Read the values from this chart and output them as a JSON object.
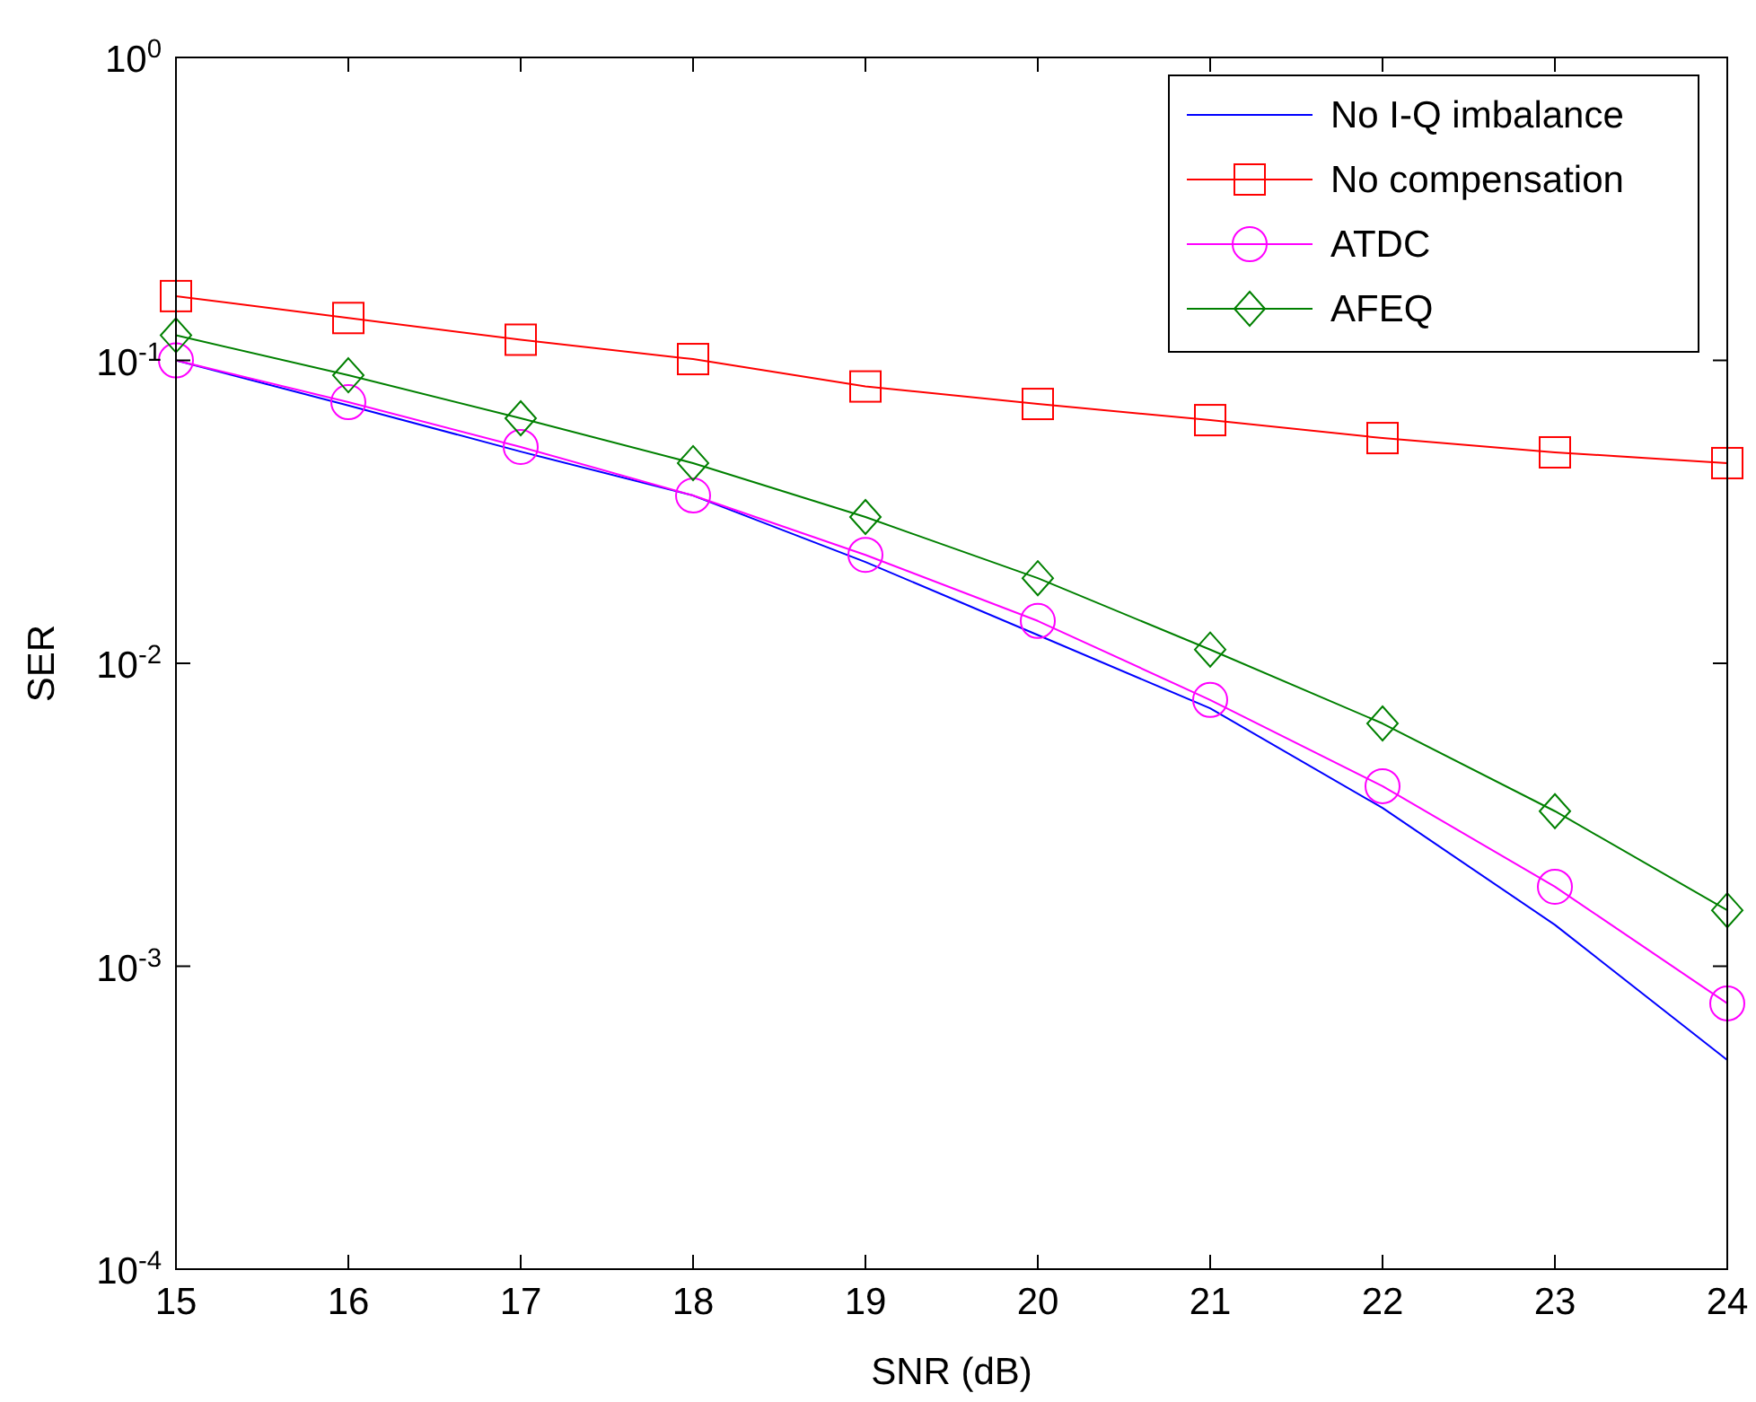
{
  "chart_data": {
    "type": "line",
    "xlabel": "SNR (dB)",
    "ylabel": "SER",
    "log": "y",
    "grid": false,
    "legend": "top right",
    "x": [
      15,
      16,
      17,
      18,
      19,
      20,
      21,
      22,
      23,
      24
    ],
    "xlim": [
      15,
      24
    ],
    "xticks": [
      15,
      16,
      17,
      18,
      19,
      20,
      21,
      22,
      23,
      24
    ],
    "ylim": [
      0.0001,
      1
    ],
    "yticks": [
      {
        "value": 0.0001,
        "label": "10$^{-4}$"
      },
      {
        "value": 0.001,
        "label": "10$^{-3}$"
      },
      {
        "value": 0.01,
        "label": "10$^{-2}$"
      },
      {
        "value": 0.1,
        "label": "10$^{-1}$"
      },
      {
        "value": 1,
        "label": "10$^{0}$"
      }
    ],
    "series": [
      {
        "name": "No I-Q imbalance",
        "color": "#0000ff",
        "marker": "none",
        "values": [
          0.1,
          0.071,
          0.05,
          0.0358,
          0.0216,
          0.0124,
          0.0071,
          0.00333,
          0.00137,
          0.00049
        ]
      },
      {
        "name": "No compensation",
        "color": "#ff0000",
        "marker": "square",
        "values": [
          0.163,
          0.138,
          0.117,
          0.101,
          0.082,
          0.0718,
          0.0635,
          0.0554,
          0.0497,
          0.0458
        ]
      },
      {
        "name": "ATDC",
        "color": "#ff00ff",
        "marker": "circle",
        "values": [
          0.1,
          0.0728,
          0.0518,
          0.0358,
          0.0228,
          0.0138,
          0.00757,
          0.00393,
          0.00183,
          0.000754
        ]
      },
      {
        "name": "AFEQ",
        "color": "#008000",
        "marker": "diamond",
        "values": [
          0.121,
          0.0893,
          0.0644,
          0.0458,
          0.0304,
          0.0191,
          0.0111,
          0.00633,
          0.00325,
          0.00153
        ]
      }
    ]
  }
}
